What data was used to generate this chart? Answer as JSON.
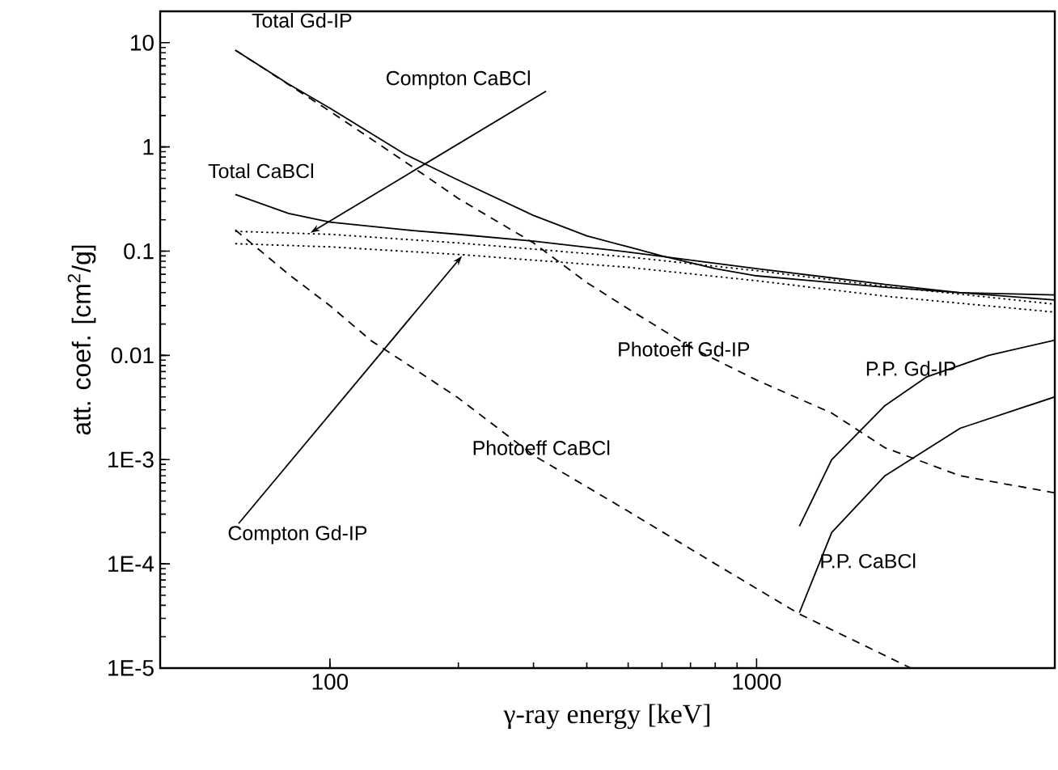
{
  "chart_data": {
    "type": "line",
    "xlabel": "γ-ray energy [keV]",
    "ylabel": "att. coef. [cm$^{2}$/g]",
    "log": "xy",
    "xlim": [
      40,
      5000
    ],
    "ylim": [
      1e-05,
      20
    ],
    "xticks": [
      100,
      1000
    ],
    "yticks": [
      {
        "value": 1e-05,
        "label": "1E-5"
      },
      {
        "value": 0.0001,
        "label": "1E-4"
      },
      {
        "value": 0.001,
        "label": "1E-3"
      },
      0.01,
      0.1,
      1,
      10
    ],
    "series": [
      {
        "name": "Total Gd-IP",
        "color": "#000000",
        "line_style": "solid",
        "x": [
          60,
          80,
          100,
          150,
          200,
          300,
          400,
          500,
          600,
          800,
          1000,
          1500,
          2000,
          3000,
          5000
        ],
        "values": [
          8.5,
          4.0,
          2.35,
          0.85,
          0.48,
          0.22,
          0.14,
          0.11,
          0.09,
          0.068,
          0.058,
          0.05,
          0.045,
          0.04,
          0.038
        ]
      },
      {
        "name": "Total CaBCl",
        "color": "#000000",
        "line_style": "solid",
        "x": [
          60,
          80,
          100,
          150,
          200,
          300,
          500,
          1000,
          2000,
          3000,
          5000
        ],
        "values": [
          0.35,
          0.23,
          0.19,
          0.16,
          0.145,
          0.125,
          0.098,
          0.068,
          0.048,
          0.04,
          0.034
        ]
      },
      {
        "name": "Photoeff Gd-IP",
        "color": "#000000",
        "line_style": "dashed",
        "x": [
          60,
          100,
          150,
          200,
          300,
          400,
          500,
          700,
          1000,
          1500,
          2000,
          3000,
          5000
        ],
        "values": [
          8.5,
          2.2,
          0.72,
          0.32,
          0.12,
          0.05,
          0.028,
          0.012,
          0.0058,
          0.0028,
          0.0013,
          0.0007,
          0.00048
        ]
      },
      {
        "name": "Photoeff CaBCl",
        "color": "#000000",
        "line_style": "dashed",
        "x": [
          60,
          80,
          100,
          125,
          150,
          200,
          300,
          500,
          800,
          1260,
          2300
        ],
        "values": [
          0.16,
          0.06,
          0.03,
          0.0138,
          0.0085,
          0.0039,
          0.0011,
          0.00032,
          0.0001,
          3.3e-05,
          1e-05
        ]
      },
      {
        "name": "Compton CaBCl",
        "color": "#000000",
        "line_style": "dotted",
        "x": [
          60,
          100,
          200,
          500,
          1000,
          2000,
          5000
        ],
        "values": [
          0.155,
          0.145,
          0.12,
          0.088,
          0.065,
          0.046,
          0.031
        ]
      },
      {
        "name": "Compton Gd-IP",
        "color": "#000000",
        "line_style": "dotted",
        "x": [
          60,
          100,
          200,
          500,
          1000,
          2000,
          5000
        ],
        "values": [
          0.118,
          0.11,
          0.093,
          0.07,
          0.052,
          0.037,
          0.026
        ]
      },
      {
        "name": "P.P. Gd-IP",
        "color": "#000000",
        "line_style": "solid",
        "x": [
          1260,
          1500,
          2000,
          2500,
          3500,
          5000
        ],
        "values": [
          0.00023,
          0.001,
          0.0033,
          0.0062,
          0.01,
          0.014
        ]
      },
      {
        "name": "P.P. CaBCl",
        "color": "#000000",
        "line_style": "solid",
        "x": [
          1260,
          1500,
          2000,
          3000,
          5000
        ],
        "values": [
          3.4e-05,
          0.0002,
          0.0007,
          0.002,
          0.004
        ]
      }
    ]
  }
}
